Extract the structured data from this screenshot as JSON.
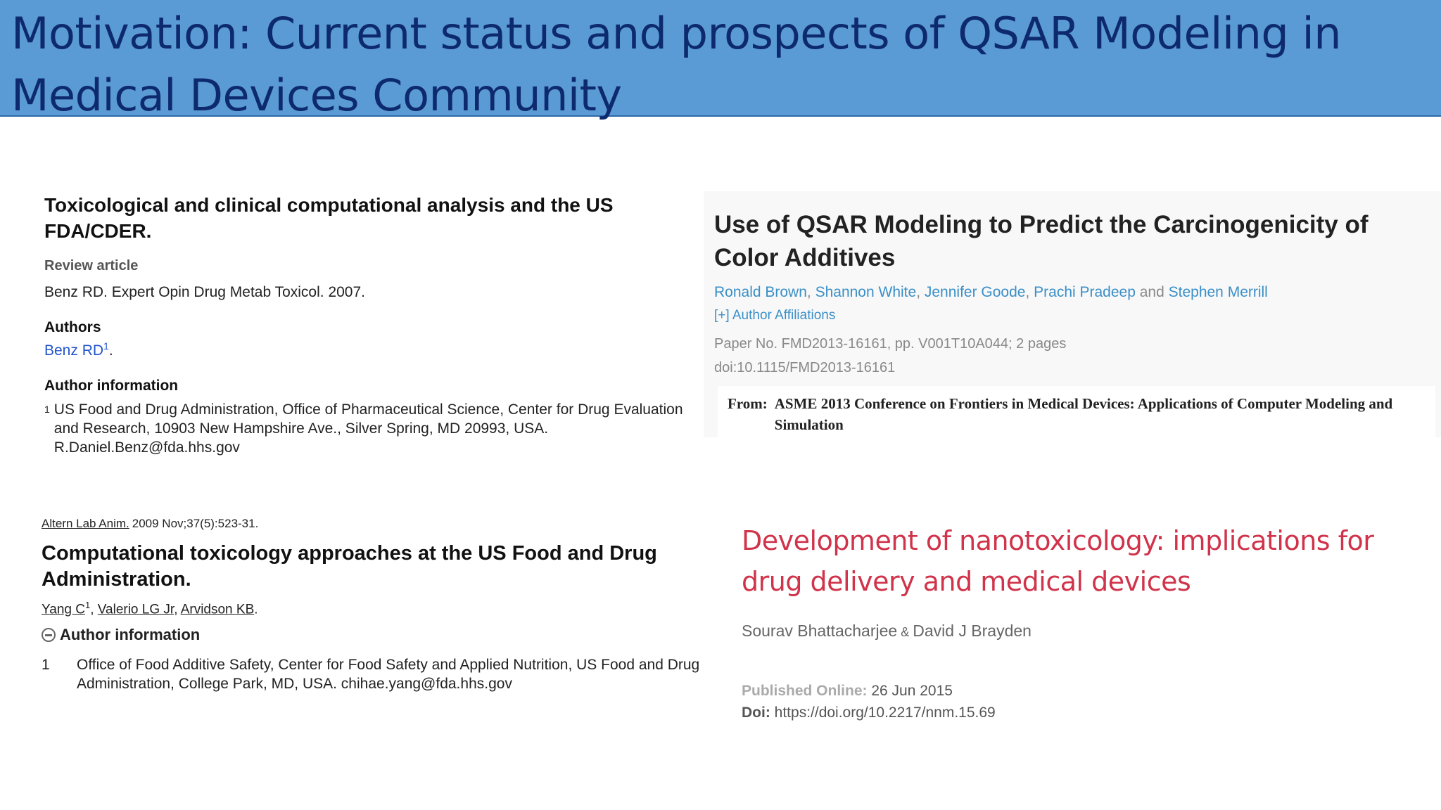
{
  "header": {
    "title": "Motivation: Current status and prospects of QSAR Modeling in Medical Devices Community"
  },
  "article1": {
    "title": "Toxicological and clinical computational analysis and the US FDA/CDER.",
    "type": "Review article",
    "citation": "Benz RD. Expert Opin Drug Metab Toxicol. 2007.",
    "authors_heading": "Authors",
    "author": "Benz RD",
    "author_sup": "1",
    "author_suffix": ".",
    "affil_heading": "Author information",
    "affil_num": "1",
    "affil_text": "US Food and Drug Administration, Office of Pharmaceutical Science, Center for Drug Evaluation and Research, 10903 New Hampshire Ave., Silver Spring, MD 20993, USA. R.Daniel.Benz@fda.hhs.gov"
  },
  "article2": {
    "title": "Use of QSAR Modeling to Predict the Carcinogenicity of Color Additives",
    "authors": [
      "Ronald Brown",
      "Shannon White",
      "Jennifer Goode",
      "Prachi Pradeep",
      "Stephen Merrill"
    ],
    "sep1": ", ",
    "sep_and": " and ",
    "affiliations_link": "[+] Author Affiliations",
    "paper_no": "Paper No. FMD2013-16161, pp. V001T10A044; 2 pages",
    "doi": "doi:10.1115/FMD2013-16161",
    "from_label": "From:",
    "from_text": "ASME 2013 Conference on Frontiers in Medical Devices: Applications of Computer Modeling and Simulation"
  },
  "article3": {
    "journal": "Altern Lab Anim.",
    "date": "2009 Nov;37(5):523-31.",
    "title": "Computational toxicology approaches at the US Food and Drug Administration.",
    "authors": [
      "Yang C",
      "Valerio LG Jr",
      "Arvidson KB"
    ],
    "author1_sup": "1",
    "comma": ", ",
    "period": ".",
    "affil_heading": "Author information",
    "affil_num": "1",
    "affil_text": "Office of Food Additive Safety, Center for Food Safety and Applied Nutrition, US Food and Drug Administration, College Park, MD, USA. chihae.yang@fda.hhs.gov"
  },
  "article4": {
    "title": "Development of nanotoxicology: implications for drug delivery and medical devices",
    "author1": "Sourav Bhattacharjee",
    "amp": " & ",
    "author2": "David J Brayden",
    "published_label": "Published Online:",
    "published_date": " 26 Jun 2015",
    "doi_label": "Doi:",
    "doi": " https://doi.org/10.2217/nnm.15.69"
  },
  "colors": {
    "header_bg": "#5b9bd5",
    "header_text": "#0e2a6e",
    "link_blue": "#3a8fc7",
    "nano_title_red": "#d0334a"
  }
}
